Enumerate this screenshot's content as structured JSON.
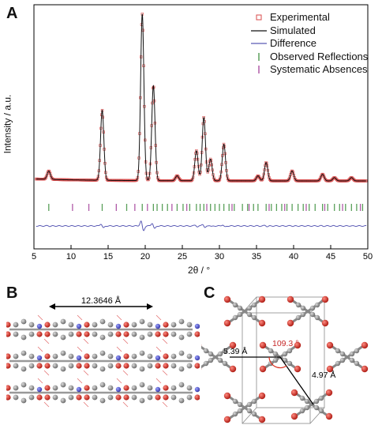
{
  "panels": {
    "a": "A",
    "b": "B",
    "c": "C"
  },
  "chart_data": {
    "type": "line",
    "xlabel": "2θ / °",
    "ylabel": "Intensity / a.u.",
    "xlim": [
      5,
      50
    ],
    "xticks": [
      5,
      10,
      15,
      20,
      25,
      30,
      35,
      40,
      45,
      50
    ],
    "series": [
      {
        "name": "Experimental",
        "color": "#d94b4b",
        "marker": "open-square"
      },
      {
        "name": "Simulated",
        "color": "#111111",
        "marker": "line"
      },
      {
        "name": "Difference",
        "color": "#5b5bb5",
        "marker": "line"
      },
      {
        "name": "Observed Reflections",
        "color": "#5aa05a",
        "marker": "tick"
      },
      {
        "name": "Systematic Absences",
        "color": "#b05aa8",
        "marker": "tick"
      }
    ],
    "peaks": [
      {
        "x": 7.0,
        "h": 0.05
      },
      {
        "x": 14.2,
        "h": 0.42
      },
      {
        "x": 19.6,
        "h": 1.0
      },
      {
        "x": 21.1,
        "h": 0.57
      },
      {
        "x": 24.3,
        "h": 0.03
      },
      {
        "x": 26.9,
        "h": 0.18
      },
      {
        "x": 27.9,
        "h": 0.38
      },
      {
        "x": 28.8,
        "h": 0.13
      },
      {
        "x": 30.6,
        "h": 0.22
      },
      {
        "x": 35.2,
        "h": 0.03
      },
      {
        "x": 36.3,
        "h": 0.11
      },
      {
        "x": 39.8,
        "h": 0.06
      },
      {
        "x": 43.9,
        "h": 0.04
      },
      {
        "x": 45.5,
        "h": 0.02
      },
      {
        "x": 47.8,
        "h": 0.02
      }
    ],
    "observed_reflections": [
      7.0,
      14.2,
      17.5,
      19.6,
      21.1,
      21.6,
      22.3,
      23.0,
      24.3,
      25.1,
      26.0,
      26.9,
      27.4,
      27.9,
      28.8,
      29.4,
      30.0,
      30.6,
      31.3,
      32.0,
      33.1,
      33.8,
      34.6,
      35.2,
      36.3,
      37.0,
      37.7,
      38.4,
      39.1,
      39.8,
      40.6,
      41.3,
      42.1,
      42.9,
      43.9,
      44.6,
      45.5,
      46.2,
      47.0,
      47.8,
      48.5,
      49.3
    ],
    "systematic_absences": [
      10.2,
      12.4,
      16.1,
      18.6,
      20.3,
      23.6,
      25.6,
      28.3,
      31.7,
      34.0,
      36.7,
      38.8,
      41.7,
      44.2,
      46.6,
      49.0
    ]
  },
  "panel_b": {
    "dimension": "12.3646 Å"
  },
  "panel_c": {
    "angle": "109.3 °",
    "dist1": "5.39 Å",
    "dist2": "4.97 Å"
  }
}
